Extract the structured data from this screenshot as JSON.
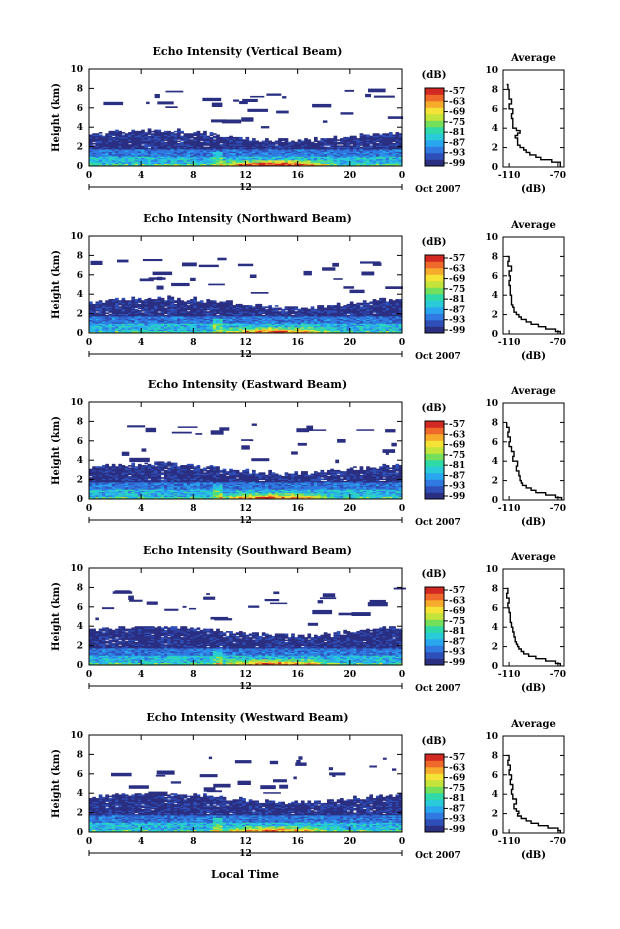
{
  "figure": {
    "xlabel": "Local Time",
    "colorbar_unit": "(dB)",
    "colorbar_ticks": [
      "-57",
      "-63",
      "-69",
      "-75",
      "-81",
      "-87",
      "-93",
      "-99"
    ],
    "colors": [
      "#2a2f82",
      "#2f4fb8",
      "#2f79e0",
      "#2aa6ef",
      "#29cbd8",
      "#2fd9a8",
      "#73df5a",
      "#c4e33b",
      "#f4e236",
      "#f6ab2d",
      "#ef6a2a",
      "#d22a22"
    ]
  },
  "chart_data": [
    {
      "type": "heatmap",
      "title": "Echo Intensity (Vertical Beam)",
      "ylabel": "Height (km)",
      "xlabel": "Local Time",
      "xticks": [
        "0",
        "4",
        "8",
        "12",
        "16",
        "20",
        "0"
      ],
      "xlim": [
        0,
        24
      ],
      "yticks": [
        "0",
        "2",
        "4",
        "6",
        "8",
        "10"
      ],
      "ylim": [
        0,
        10
      ],
      "date_label": "12",
      "month_label": "Oct 2007",
      "colorbar": {
        "label": "(dB)",
        "ticks": [
          "-57",
          "-63",
          "-69",
          "-75",
          "-81",
          "-87",
          "-93",
          "-99"
        ]
      },
      "profile": {
        "title": "Average",
        "xlabel": "(dB)",
        "xticks": [
          "-110",
          "-70"
        ],
        "xlim": [
          -115,
          -65
        ],
        "height": [
          0,
          0.25,
          0.5,
          0.75,
          1,
          1.25,
          1.5,
          1.75,
          2,
          2.25,
          2.5,
          2.75,
          3,
          3.25,
          3.5,
          3.75,
          4,
          4.5,
          5,
          5.5,
          6,
          6.5,
          7,
          7.5,
          8,
          8.5
        ],
        "value": [
          -68,
          -68,
          -75,
          -84,
          -88,
          -93,
          -96,
          -98,
          -101,
          -103,
          -103,
          -103,
          -105,
          -103,
          -101,
          -104,
          -107,
          -107,
          -108,
          -107,
          -110,
          -108,
          -110,
          -110,
          -111,
          -112
        ]
      }
    },
    {
      "type": "heatmap",
      "title": "Echo Intensity (Northward Beam)",
      "ylabel": "Height (km)",
      "xlabel": "Local Time",
      "xticks": [
        "0",
        "4",
        "8",
        "12",
        "16",
        "20",
        "0"
      ],
      "xlim": [
        0,
        24
      ],
      "yticks": [
        "0",
        "2",
        "4",
        "6",
        "8",
        "10"
      ],
      "ylim": [
        0,
        10
      ],
      "date_label": "12",
      "month_label": "Oct 2007",
      "colorbar": {
        "label": "(dB)",
        "ticks": [
          "-57",
          "-63",
          "-69",
          "-75",
          "-81",
          "-87",
          "-93",
          "-99"
        ]
      },
      "profile": {
        "title": "Average",
        "xlabel": "(dB)",
        "xticks": [
          "-110",
          "-70"
        ],
        "xlim": [
          -115,
          -65
        ],
        "height": [
          0,
          0.25,
          0.5,
          0.75,
          1,
          1.25,
          1.5,
          1.75,
          2,
          2.25,
          2.5,
          2.75,
          3,
          3.5,
          4,
          4.5,
          5,
          5.5,
          6,
          6.5,
          7,
          7.5,
          8
        ],
        "value": [
          -68,
          -72,
          -80,
          -86,
          -92,
          -96,
          -100,
          -102,
          -104,
          -106,
          -106,
          -107,
          -108,
          -108,
          -109,
          -109,
          -110,
          -109,
          -110,
          -108,
          -111,
          -110,
          -112
        ]
      }
    },
    {
      "type": "heatmap",
      "title": "Echo Intensity (Eastward Beam)",
      "ylabel": "Height (km)",
      "xlabel": "Local Time",
      "xticks": [
        "0",
        "4",
        "8",
        "12",
        "16",
        "20",
        "0"
      ],
      "xlim": [
        0,
        24
      ],
      "yticks": [
        "0",
        "2",
        "4",
        "6",
        "8",
        "10"
      ],
      "ylim": [
        0,
        10
      ],
      "date_label": "12",
      "month_label": "Oct 2007",
      "colorbar": {
        "label": "(dB)",
        "ticks": [
          "-57",
          "-63",
          "-69",
          "-75",
          "-81",
          "-87",
          "-93",
          "-99"
        ]
      },
      "profile": {
        "title": "Average",
        "xlabel": "(dB)",
        "xticks": [
          "-110",
          "-70"
        ],
        "xlim": [
          -115,
          -65
        ],
        "height": [
          0,
          0.25,
          0.5,
          0.75,
          1,
          1.25,
          1.5,
          1.75,
          2,
          2.5,
          3,
          3.5,
          4,
          4.5,
          5,
          5.5,
          6,
          6.5,
          7,
          7.5,
          8
        ],
        "value": [
          -67,
          -72,
          -80,
          -88,
          -92,
          -96,
          -99,
          -100,
          -101,
          -102,
          -104,
          -103,
          -107,
          -106,
          -108,
          -110,
          -109,
          -111,
          -110,
          -112,
          -112
        ]
      }
    },
    {
      "type": "heatmap",
      "title": "Echo Intensity (Southward Beam)",
      "ylabel": "Height (km)",
      "xlabel": "Local Time",
      "xticks": [
        "0",
        "4",
        "8",
        "12",
        "16",
        "20",
        "0"
      ],
      "xlim": [
        0,
        24
      ],
      "yticks": [
        "0",
        "2",
        "4",
        "6",
        "8",
        "10"
      ],
      "ylim": [
        0,
        10
      ],
      "date_label": "12",
      "month_label": "Oct 2007",
      "colorbar": {
        "label": "(dB)",
        "ticks": [
          "-57",
          "-63",
          "-69",
          "-75",
          "-81",
          "-87",
          "-93",
          "-99"
        ]
      },
      "profile": {
        "title": "Average",
        "xlabel": "(dB)",
        "xticks": [
          "-110",
          "-70"
        ],
        "xlim": [
          -115,
          -65
        ],
        "height": [
          0,
          0.25,
          0.5,
          0.75,
          1,
          1.25,
          1.5,
          1.75,
          2,
          2.25,
          2.5,
          3,
          3.5,
          4,
          4.5,
          5,
          5.5,
          6,
          6.5,
          7,
          7.5,
          8
        ],
        "value": [
          -68,
          -72,
          -80,
          -88,
          -94,
          -98,
          -100,
          -102,
          -103,
          -104,
          -105,
          -106,
          -107,
          -108,
          -109,
          -109,
          -110,
          -111,
          -110,
          -112,
          -111,
          -112
        ]
      }
    },
    {
      "type": "heatmap",
      "title": "Echo Intensity (Westward Beam)",
      "ylabel": "Height (km)",
      "xlabel": "Local Time",
      "xticks": [
        "0",
        "4",
        "8",
        "12",
        "16",
        "20",
        "0"
      ],
      "xlim": [
        0,
        24
      ],
      "yticks": [
        "0",
        "2",
        "4",
        "6",
        "8",
        "10"
      ],
      "ylim": [
        0,
        10
      ],
      "date_label": "12",
      "month_label": "Oct 2007",
      "colorbar": {
        "label": "(dB)",
        "ticks": [
          "-57",
          "-63",
          "-69",
          "-75",
          "-81",
          "-87",
          "-93",
          "-99"
        ]
      },
      "profile": {
        "title": "Average",
        "xlabel": "(dB)",
        "xticks": [
          "-110",
          "-70"
        ],
        "xlim": [
          -115,
          -65
        ],
        "height": [
          0,
          0.25,
          0.5,
          0.75,
          1,
          1.25,
          1.5,
          1.75,
          2,
          2.25,
          2.5,
          3,
          3.5,
          4,
          4.5,
          5,
          5.5,
          6,
          6.5,
          7,
          7.5,
          8
        ],
        "value": [
          -68,
          -70,
          -78,
          -86,
          -92,
          -96,
          -100,
          -103,
          -102,
          -104,
          -106,
          -104,
          -107,
          -108,
          -107,
          -109,
          -108,
          -110,
          -109,
          -111,
          -110,
          -112
        ]
      }
    }
  ]
}
